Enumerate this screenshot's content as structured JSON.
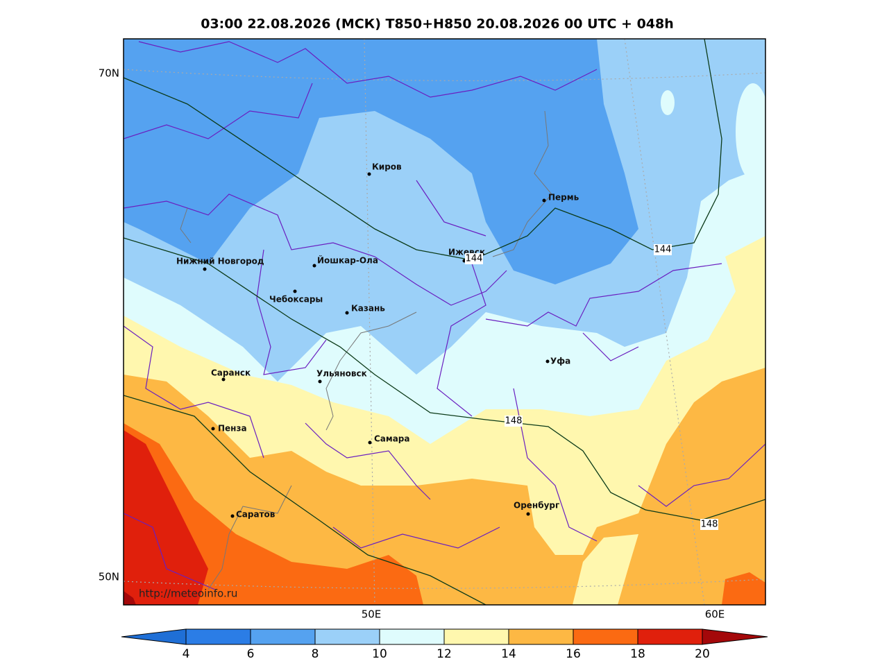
{
  "title": "03:00 22.08.2026 (МСК) T850+H850 20.08.2026 00 UTC + 048h",
  "url": "http://meteoinfo.ru",
  "lat_labels": [
    "70N",
    "50N"
  ],
  "lon_labels": [
    "50E",
    "60E"
  ],
  "cities": [
    "Киров",
    "Пермь",
    "Ижевск",
    "Нижний Новгород",
    "Йошкар-Ола",
    "Чебоксары",
    "Казань",
    "Уфа",
    "Саранск",
    "Ульяновск",
    "Пенза",
    "Самара",
    "Оренбург",
    "Саратов"
  ],
  "contour_labels": [
    144,
    144,
    148,
    148
  ],
  "colorbar": {
    "ticks": [
      4,
      6,
      8,
      10,
      12,
      14,
      16,
      18,
      20
    ],
    "colors": [
      "#1f6fd6",
      "#2b7de6",
      "#55a2f0",
      "#9bd0f8",
      "#dffcfd",
      "#fff7ae",
      "#fdb844",
      "#fb6a12",
      "#e0200c",
      "#a4080a"
    ]
  }
}
